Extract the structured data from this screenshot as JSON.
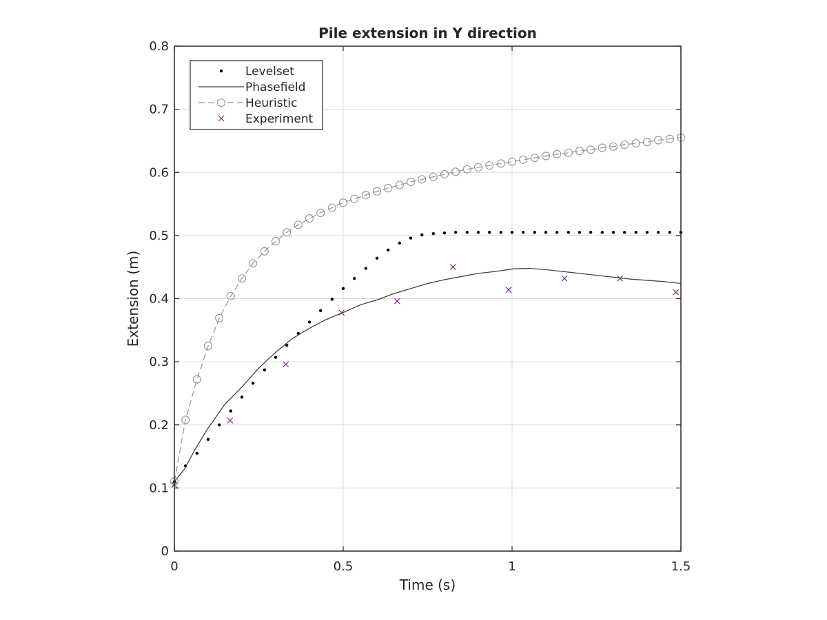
{
  "chart_data": {
    "type": "line",
    "title": "Pile extension in Y direction",
    "xlabel": "Time (s)",
    "ylabel": "Extension (m)",
    "xlim": [
      0,
      1.5
    ],
    "ylim": [
      0,
      0.8
    ],
    "xticks": [
      0,
      0.5,
      1,
      1.5
    ],
    "xtick_labels": [
      "0",
      "0.5",
      "1",
      "1.5"
    ],
    "yticks": [
      0,
      0.1,
      0.2,
      0.3,
      0.4,
      0.5,
      0.6,
      0.7,
      0.8
    ],
    "ytick_labels": [
      "0",
      "0.1",
      "0.2",
      "0.3",
      "0.4",
      "0.5",
      "0.6",
      "0.7",
      "0.8"
    ],
    "grid": true,
    "legend_position": "top-left",
    "series": [
      {
        "name": "Levelset",
        "style": "dots",
        "color": "#000000",
        "x": [
          0,
          0.033,
          0.067,
          0.1,
          0.133,
          0.167,
          0.2,
          0.233,
          0.267,
          0.3,
          0.333,
          0.367,
          0.4,
          0.433,
          0.467,
          0.5,
          0.533,
          0.567,
          0.6,
          0.633,
          0.667,
          0.7,
          0.733,
          0.767,
          0.8,
          0.833,
          0.867,
          0.9,
          0.933,
          0.967,
          1.0,
          1.033,
          1.067,
          1.1,
          1.133,
          1.167,
          1.2,
          1.233,
          1.267,
          1.3,
          1.333,
          1.367,
          1.4,
          1.433,
          1.467,
          1.5
        ],
        "y": [
          0.11,
          0.135,
          0.155,
          0.177,
          0.2,
          0.222,
          0.244,
          0.266,
          0.287,
          0.307,
          0.326,
          0.345,
          0.363,
          0.381,
          0.399,
          0.416,
          0.432,
          0.448,
          0.464,
          0.477,
          0.488,
          0.496,
          0.501,
          0.503,
          0.504,
          0.505,
          0.505,
          0.505,
          0.505,
          0.505,
          0.505,
          0.505,
          0.505,
          0.505,
          0.505,
          0.505,
          0.505,
          0.505,
          0.505,
          0.505,
          0.505,
          0.505,
          0.505,
          0.505,
          0.505,
          0.505
        ]
      },
      {
        "name": "Phasefield",
        "style": "solid",
        "color": "#404040",
        "x": [
          0,
          0.03,
          0.06,
          0.1,
          0.15,
          0.2,
          0.25,
          0.3,
          0.35,
          0.4,
          0.45,
          0.5,
          0.55,
          0.6,
          0.65,
          0.7,
          0.75,
          0.8,
          0.85,
          0.9,
          0.95,
          1.0,
          1.05,
          1.1,
          1.15,
          1.2,
          1.25,
          1.3,
          1.35,
          1.4,
          1.45,
          1.5
        ],
        "y": [
          0.11,
          0.13,
          0.16,
          0.195,
          0.233,
          0.26,
          0.29,
          0.315,
          0.337,
          0.353,
          0.367,
          0.378,
          0.39,
          0.398,
          0.408,
          0.416,
          0.424,
          0.43,
          0.435,
          0.44,
          0.443,
          0.447,
          0.448,
          0.446,
          0.443,
          0.44,
          0.437,
          0.434,
          0.431,
          0.429,
          0.427,
          0.424
        ]
      },
      {
        "name": "Heuristic",
        "style": "dashed-circles",
        "color": "#9a9a9a",
        "x": [
          0,
          0.033,
          0.067,
          0.1,
          0.133,
          0.167,
          0.2,
          0.233,
          0.267,
          0.3,
          0.333,
          0.367,
          0.4,
          0.433,
          0.467,
          0.5,
          0.533,
          0.567,
          0.6,
          0.633,
          0.667,
          0.7,
          0.733,
          0.767,
          0.8,
          0.833,
          0.867,
          0.9,
          0.933,
          0.967,
          1.0,
          1.033,
          1.067,
          1.1,
          1.133,
          1.167,
          1.2,
          1.233,
          1.267,
          1.3,
          1.333,
          1.367,
          1.4,
          1.433,
          1.467,
          1.5
        ],
        "y": [
          0.11,
          0.208,
          0.272,
          0.325,
          0.369,
          0.404,
          0.432,
          0.456,
          0.475,
          0.491,
          0.505,
          0.517,
          0.527,
          0.536,
          0.544,
          0.552,
          0.558,
          0.564,
          0.57,
          0.575,
          0.58,
          0.585,
          0.589,
          0.593,
          0.597,
          0.601,
          0.605,
          0.608,
          0.611,
          0.614,
          0.617,
          0.62,
          0.623,
          0.626,
          0.629,
          0.631,
          0.634,
          0.636,
          0.639,
          0.641,
          0.644,
          0.646,
          0.648,
          0.651,
          0.653,
          0.655
        ]
      },
      {
        "name": "Experiment",
        "style": "crosses",
        "color": "#7b2a8c",
        "x": [
          0,
          0.165,
          0.33,
          0.495,
          0.66,
          0.825,
          0.99,
          1.155,
          1.32,
          1.485
        ],
        "y": [
          0.105,
          0.207,
          0.296,
          0.378,
          0.396,
          0.45,
          0.414,
          0.432,
          0.432,
          0.41
        ]
      }
    ]
  }
}
